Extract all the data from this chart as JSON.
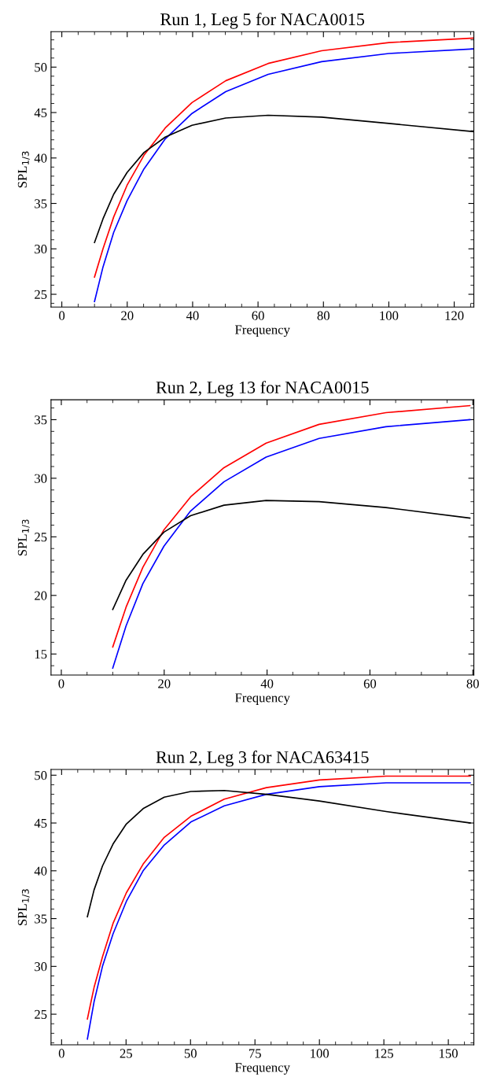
{
  "chart_data": [
    {
      "type": "line",
      "title": "Run 1, Leg 5 for NACA0015",
      "xlabel": "Frequency",
      "ylabel": "SPL$_{1/3}$",
      "x": [
        10,
        12.59,
        15.85,
        19.95,
        25.12,
        31.62,
        39.81,
        50.12,
        63.1,
        79.43,
        100,
        125.9
      ],
      "series": [
        {
          "color": "#ff0000",
          "values": [
            26.9,
            30.0,
            33.5,
            37.0,
            40.3,
            43.3,
            46.1,
            48.5,
            50.4,
            51.8,
            52.7,
            53.2
          ]
        },
        {
          "color": "#0000ff",
          "values": [
            24.2,
            28.0,
            31.8,
            35.3,
            38.8,
            42.1,
            44.9,
            47.3,
            49.2,
            50.6,
            51.5,
            52.0
          ]
        },
        {
          "color": "#000000",
          "values": [
            30.7,
            33.3,
            36.0,
            38.4,
            40.6,
            42.3,
            43.6,
            44.4,
            44.7,
            44.5,
            43.8,
            42.9
          ]
        }
      ],
      "xlim": [
        -3.3,
        126
      ],
      "ylim": [
        23.6,
        53.9
      ],
      "xticks": [
        0,
        20,
        40,
        60,
        80,
        100,
        120
      ],
      "yticks": [
        25,
        30,
        35,
        40,
        45,
        50
      ]
    },
    {
      "type": "line",
      "title": "Run 2, Leg 13 for NACA0015",
      "xlabel": "Frequency",
      "ylabel": "SPL$_{1/3}$",
      "x": [
        10,
        12.59,
        15.85,
        19.95,
        25.12,
        31.62,
        39.81,
        50.12,
        63.1,
        79.43
      ],
      "series": [
        {
          "color": "#ff0000",
          "values": [
            15.6,
            19.0,
            22.4,
            25.6,
            28.4,
            30.9,
            33.0,
            34.6,
            35.6,
            36.2
          ]
        },
        {
          "color": "#0000ff",
          "values": [
            13.8,
            17.4,
            21.0,
            24.2,
            27.2,
            29.7,
            31.8,
            33.4,
            34.4,
            35.0
          ]
        },
        {
          "color": "#000000",
          "values": [
            18.8,
            21.3,
            23.5,
            25.4,
            26.8,
            27.7,
            28.1,
            28.0,
            27.5,
            26.6
          ]
        }
      ],
      "xlim": [
        -2,
        80.2
      ],
      "ylim": [
        13.2,
        36.7
      ],
      "xticks": [
        0,
        20,
        40,
        60,
        80
      ],
      "yticks": [
        15,
        20,
        25,
        30,
        35
      ]
    },
    {
      "type": "line",
      "title": "Run 2, Leg 3 for NACA63415",
      "xlabel": "Frequency",
      "ylabel": "SPL$_{1/3}$",
      "x": [
        10,
        12.59,
        15.85,
        19.95,
        25.12,
        31.62,
        39.81,
        50.12,
        63.1,
        79.43,
        100,
        125.9,
        158.5
      ],
      "series": [
        {
          "color": "#ff0000",
          "values": [
            24.5,
            27.8,
            31.0,
            34.5,
            37.7,
            40.7,
            43.5,
            45.7,
            47.5,
            48.7,
            49.5,
            49.9,
            49.9
          ]
        },
        {
          "color": "#0000ff",
          "values": [
            22.4,
            26.3,
            30.0,
            33.4,
            36.8,
            40.0,
            42.7,
            45.1,
            46.8,
            48.0,
            48.8,
            49.2,
            49.2
          ]
        },
        {
          "color": "#000000",
          "values": [
            35.2,
            38.0,
            40.5,
            42.8,
            44.9,
            46.5,
            47.7,
            48.3,
            48.4,
            48.0,
            47.3,
            46.2,
            45.0
          ]
        }
      ],
      "xlim": [
        -4.1,
        159.9
      ],
      "ylim": [
        21.8,
        50.6
      ],
      "xticks": [
        0,
        25,
        50,
        75,
        100,
        125,
        150
      ],
      "yticks": [
        25,
        30,
        35,
        40,
        45,
        50
      ]
    }
  ]
}
